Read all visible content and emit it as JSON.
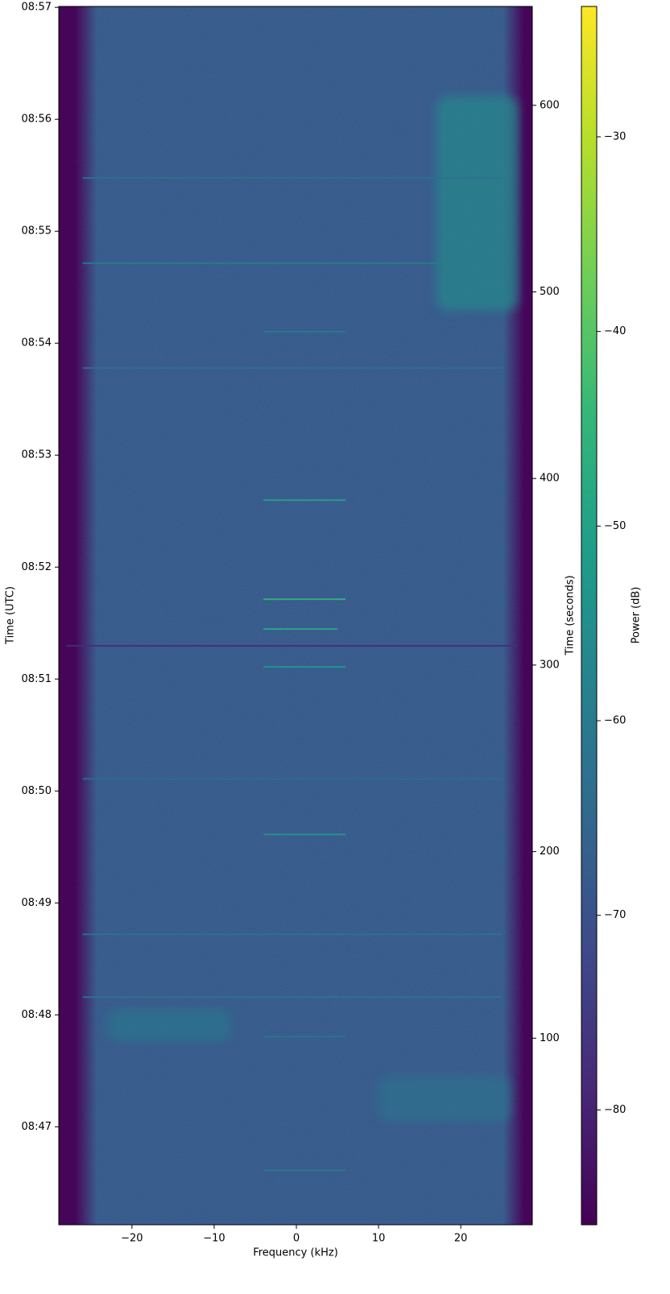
{
  "chart_data": {
    "type": "spectrogram",
    "xlabel": "Frequency (kHz)",
    "ylabel": "Time (UTC)",
    "y2label": "Time (seconds)",
    "colorbar_label": "Power (dB)",
    "colormap": "viridis",
    "xlim": [
      -28.9,
      28.7
    ],
    "xticks": [
      {
        "value": -20,
        "label": "−20"
      },
      {
        "value": -10,
        "label": "−10"
      },
      0,
      10,
      20
    ],
    "ylim": [
      0,
      653
    ],
    "yticks": [
      {
        "value": 52.5,
        "label": "08:47"
      },
      {
        "value": 112.5,
        "label": "08:48"
      },
      {
        "value": 172.5,
        "label": "08:49"
      },
      {
        "value": 232.5,
        "label": "08:50"
      },
      {
        "value": 292.5,
        "label": "08:51"
      },
      {
        "value": 352.5,
        "label": "08:52"
      },
      {
        "value": 412.5,
        "label": "08:53"
      },
      {
        "value": 472.5,
        "label": "08:54"
      },
      {
        "value": 532.5,
        "label": "08:55"
      },
      {
        "value": 592.5,
        "label": "08:56"
      },
      {
        "value": 652.5,
        "label": "08:57"
      }
    ],
    "y2lim": [
      0,
      653
    ],
    "y2ticks": [
      100,
      200,
      300,
      400,
      500,
      600
    ],
    "clim": [
      -85.9,
      -23.3
    ],
    "cticks": [
      {
        "value": -30,
        "label": "−30"
      },
      {
        "value": -40,
        "label": "−40"
      },
      {
        "value": -50,
        "label": "−50"
      },
      {
        "value": -60,
        "label": "−60"
      },
      {
        "value": -70,
        "label": "−70"
      },
      {
        "value": -80,
        "label": "−80"
      }
    ],
    "floor_db": -68,
    "outside_db": -85,
    "passband": {
      "edges": [
        -26.8,
        27.6
      ],
      "flat": [
        -24.3,
        25.2
      ]
    },
    "signals": [
      {
        "time": 388.4,
        "freq": [
          -4,
          6
        ],
        "power": -50
      },
      {
        "time": 335.3,
        "freq": [
          -4,
          6
        ],
        "power": -45
      },
      {
        "time": 319.3,
        "freq": [
          -4,
          5
        ],
        "power": -47
      },
      {
        "time": 299.0,
        "freq": [
          -4,
          6
        ],
        "power": -52
      },
      {
        "time": 209.2,
        "freq": [
          -4,
          6
        ],
        "power": -53
      },
      {
        "time": 478.7,
        "freq": [
          -4,
          6
        ],
        "power": -60
      },
      {
        "time": 100.9,
        "freq": [
          -4,
          6
        ],
        "power": -62
      },
      {
        "time": 29.2,
        "freq": [
          -4,
          6
        ],
        "power": -60
      },
      {
        "time": 310.3,
        "freq": [
          -28,
          27
        ],
        "power": -78
      },
      {
        "time": 515.4,
        "freq": [
          -26,
          20
        ],
        "power": -60
      },
      {
        "time": 561.1,
        "freq": [
          -26,
          25
        ],
        "power": -63
      },
      {
        "time": 459.2,
        "freq": [
          -26,
          25
        ],
        "power": -64
      },
      {
        "time": 239.0,
        "freq": [
          -26,
          25
        ],
        "power": -64
      },
      {
        "time": 155.7,
        "freq": [
          -26,
          25
        ],
        "power": -62
      },
      {
        "time": 122.0,
        "freq": [
          -26,
          25
        ],
        "power": -61
      }
    ],
    "regions": [
      {
        "time": [
          490,
          605
        ],
        "freq": [
          17,
          27
        ],
        "power": -57
      },
      {
        "time": [
          98,
          116
        ],
        "freq": [
          -23,
          -8
        ],
        "power": -62
      },
      {
        "time": [
          55,
          80
        ],
        "freq": [
          10,
          26
        ],
        "power": -63
      }
    ]
  }
}
